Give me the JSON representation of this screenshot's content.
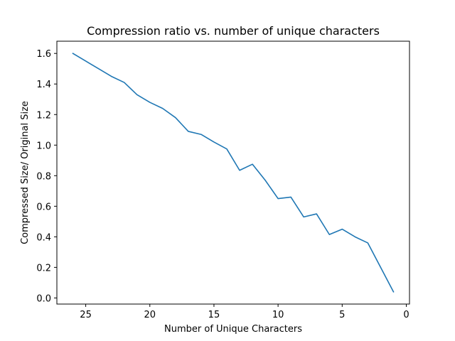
{
  "chart_data": {
    "type": "line",
    "title": "Compression ratio vs. number of unique characters",
    "xlabel": "Number of Unique Characters",
    "ylabel": "Compressed Size/ Original Size",
    "x_inverted": true,
    "xlim": [
      27.25,
      -0.25
    ],
    "ylim": [
      -0.04,
      1.68
    ],
    "xticks": [
      25,
      20,
      15,
      10,
      5,
      0
    ],
    "xtick_labels": [
      "25",
      "20",
      "15",
      "10",
      "5",
      "0"
    ],
    "yticks": [
      0.0,
      0.2,
      0.4,
      0.6,
      0.8,
      1.0,
      1.2,
      1.4,
      1.6
    ],
    "ytick_labels": [
      "0.0",
      "0.2",
      "0.4",
      "0.6",
      "0.8",
      "1.0",
      "1.2",
      "1.4",
      "1.6"
    ],
    "grid": false,
    "series": [
      {
        "color": "#1f77b4",
        "x": [
          26,
          25,
          24,
          23,
          22,
          21,
          20,
          19,
          18,
          17,
          16,
          15,
          14,
          13,
          12,
          11,
          10,
          9,
          8,
          7,
          6,
          5,
          4,
          3,
          2,
          1
        ],
        "y": [
          1.6,
          1.55,
          1.5,
          1.45,
          1.41,
          1.33,
          1.28,
          1.24,
          1.18,
          1.09,
          1.07,
          1.02,
          0.975,
          0.835,
          0.875,
          0.77,
          0.65,
          0.66,
          0.53,
          0.55,
          0.415,
          0.45,
          0.4,
          0.36,
          0.2,
          0.04
        ]
      }
    ]
  }
}
